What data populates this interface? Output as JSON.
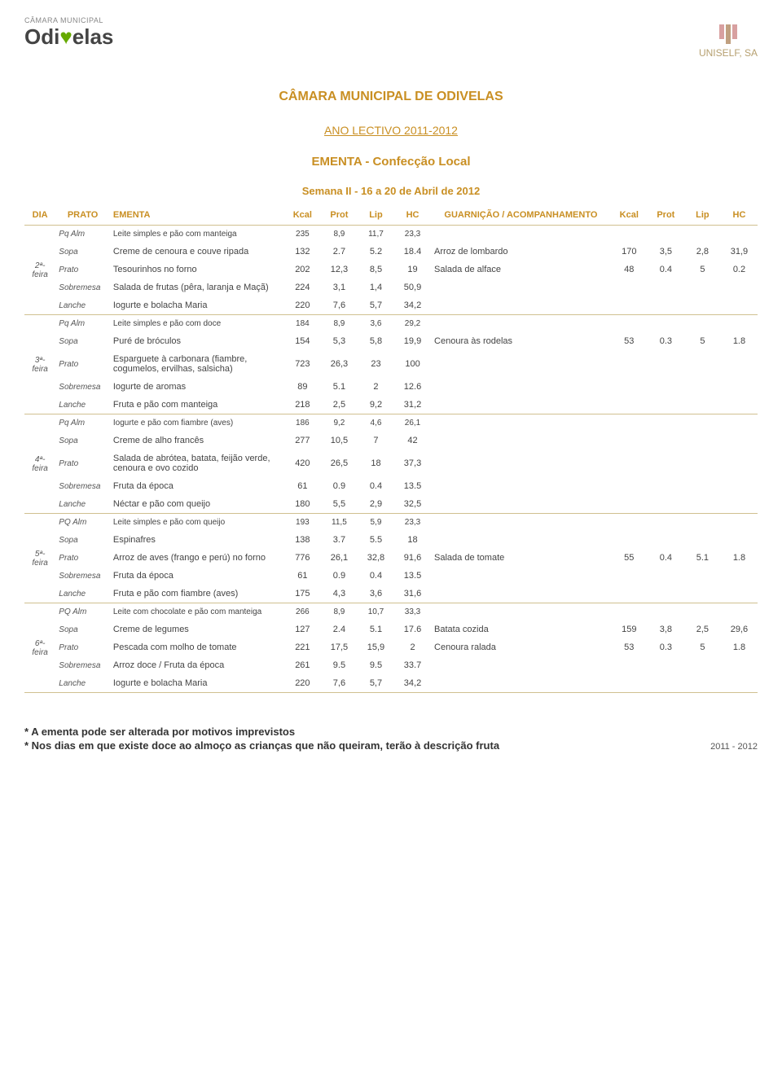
{
  "header": {
    "left_logo_small": "CÂMARA MUNICIPAL",
    "left_logo_brand_pre": "Odi",
    "left_logo_brand_mid": "♥",
    "left_logo_brand_post": "elas",
    "right_logo": "UNISELF, SA"
  },
  "titles": {
    "t1": "CÂMARA MUNICIPAL DE ODIVELAS",
    "t2": "ANO LECTIVO 2011-2012",
    "t3": "EMENTA - Confecção Local",
    "t4": "Semana II - 16 a 20 de Abril de 2012"
  },
  "columns": [
    "DIA",
    "PRATO",
    "EMENTA",
    "Kcal",
    "Prot",
    "Lip",
    "HC",
    "GUARNIÇÃO / ACOMPANHAMENTO",
    "Kcal",
    "Prot",
    "Lip",
    "HC"
  ],
  "days": [
    {
      "label": "2ª-feira",
      "rows": [
        {
          "tipo": "Pq Alm",
          "desc": "Leite simples e pão com manteiga",
          "v": [
            "235",
            "8,9",
            "11,7",
            "23,3"
          ],
          "g": "",
          "gv": [
            "",
            "",
            "",
            ""
          ],
          "small": true
        },
        {
          "tipo": "Sopa",
          "desc": "Creme de cenoura e couve ripada",
          "v": [
            "132",
            "2.7",
            "5.2",
            "18.4"
          ],
          "g": "Arroz de lombardo",
          "gv": [
            "170",
            "3,5",
            "2,8",
            "31,9"
          ]
        },
        {
          "tipo": "Prato",
          "desc": "Tesourinhos no forno",
          "v": [
            "202",
            "12,3",
            "8,5",
            "19"
          ],
          "g": "Salada de alface",
          "gv": [
            "48",
            "0.4",
            "5",
            "0.2"
          ]
        },
        {
          "tipo": "Sobremesa",
          "desc": "Salada de frutas (pêra, laranja e Maçã)",
          "v": [
            "224",
            "3,1",
            "1,4",
            "50,9"
          ],
          "g": "",
          "gv": [
            "",
            "",
            "",
            ""
          ]
        },
        {
          "tipo": "Lanche",
          "desc": "Iogurte e bolacha Maria",
          "v": [
            "220",
            "7,6",
            "5,7",
            "34,2"
          ],
          "g": "",
          "gv": [
            "",
            "",
            "",
            ""
          ]
        }
      ]
    },
    {
      "label": "3ª-feira",
      "rows": [
        {
          "tipo": "Pq Alm",
          "desc": "Leite simples e pão com doce",
          "v": [
            "184",
            "8,9",
            "3,6",
            "29,2"
          ],
          "g": "",
          "gv": [
            "",
            "",
            "",
            ""
          ],
          "small": true
        },
        {
          "tipo": "Sopa",
          "desc": "Puré de bróculos",
          "v": [
            "154",
            "5,3",
            "5,8",
            "19,9"
          ],
          "g": "Cenoura às rodelas",
          "gv": [
            "53",
            "0.3",
            "5",
            "1.8"
          ]
        },
        {
          "tipo": "Prato",
          "desc": "Esparguete à carbonara (fiambre, cogumelos, ervilhas, salsicha)",
          "v": [
            "723",
            "26,3",
            "23",
            "100"
          ],
          "g": "",
          "gv": [
            "",
            "",
            "",
            ""
          ]
        },
        {
          "tipo": "Sobremesa",
          "desc": "Iogurte de aromas",
          "v": [
            "89",
            "5.1",
            "2",
            "12.6"
          ],
          "g": "",
          "gv": [
            "",
            "",
            "",
            ""
          ]
        },
        {
          "tipo": "Lanche",
          "desc": "Fruta e pão com manteiga",
          "v": [
            "218",
            "2,5",
            "9,2",
            "31,2"
          ],
          "g": "",
          "gv": [
            "",
            "",
            "",
            ""
          ]
        }
      ]
    },
    {
      "label": "4ª-feira",
      "rows": [
        {
          "tipo": "Pq Alm",
          "desc": "Iogurte e pão com fiambre (aves)",
          "v": [
            "186",
            "9,2",
            "4,6",
            "26,1"
          ],
          "g": "",
          "gv": [
            "",
            "",
            "",
            ""
          ],
          "small": true
        },
        {
          "tipo": "Sopa",
          "desc": "Creme de alho francês",
          "v": [
            "277",
            "10,5",
            "7",
            "42"
          ],
          "g": "",
          "gv": [
            "",
            "",
            "",
            ""
          ]
        },
        {
          "tipo": "Prato",
          "desc": "Salada de abrótea, batata, feijão verde, cenoura e ovo cozido",
          "v": [
            "420",
            "26,5",
            "18",
            "37,3"
          ],
          "g": "",
          "gv": [
            "",
            "",
            "",
            ""
          ]
        },
        {
          "tipo": "Sobremesa",
          "desc": "Fruta da época",
          "v": [
            "61",
            "0.9",
            "0.4",
            "13.5"
          ],
          "g": "",
          "gv": [
            "",
            "",
            "",
            ""
          ]
        },
        {
          "tipo": "Lanche",
          "desc": "Néctar e pão com queijo",
          "v": [
            "180",
            "5,5",
            "2,9",
            "32,5"
          ],
          "g": "",
          "gv": [
            "",
            "",
            "",
            ""
          ]
        }
      ]
    },
    {
      "label": "5ª-feira",
      "rows": [
        {
          "tipo": "PQ Alm",
          "desc": "Leite simples e pão com queijo",
          "v": [
            "193",
            "11,5",
            "5,9",
            "23,3"
          ],
          "g": "",
          "gv": [
            "",
            "",
            "",
            ""
          ],
          "small": true
        },
        {
          "tipo": "Sopa",
          "desc": "Espinafres",
          "v": [
            "138",
            "3.7",
            "5.5",
            "18"
          ],
          "g": "",
          "gv": [
            "",
            "",
            "",
            ""
          ]
        },
        {
          "tipo": "Prato",
          "desc": "Arroz de aves (frango e perú) no forno",
          "v": [
            "776",
            "26,1",
            "32,8",
            "91,6"
          ],
          "g": "Salada de tomate",
          "gv": [
            "55",
            "0.4",
            "5.1",
            "1.8"
          ]
        },
        {
          "tipo": "Sobremesa",
          "desc": "Fruta da época",
          "v": [
            "61",
            "0.9",
            "0.4",
            "13.5"
          ],
          "g": "",
          "gv": [
            "",
            "",
            "",
            ""
          ]
        },
        {
          "tipo": "Lanche",
          "desc": "Fruta e pão com fiambre (aves)",
          "v": [
            "175",
            "4,3",
            "3,6",
            "31,6"
          ],
          "g": "",
          "gv": [
            "",
            "",
            "",
            ""
          ]
        }
      ]
    },
    {
      "label": "6ª-feira",
      "rows": [
        {
          "tipo": "PQ Alm",
          "desc": "Leite com chocolate e pão com manteiga",
          "v": [
            "266",
            "8,9",
            "10,7",
            "33,3"
          ],
          "g": "",
          "gv": [
            "",
            "",
            "",
            ""
          ],
          "small": true
        },
        {
          "tipo": "Sopa",
          "desc": "Creme de legumes",
          "v": [
            "127",
            "2.4",
            "5.1",
            "17.6"
          ],
          "g": "Batata cozida",
          "gv": [
            "159",
            "3,8",
            "2,5",
            "29,6"
          ]
        },
        {
          "tipo": "Prato",
          "desc": "Pescada com molho de tomate",
          "v": [
            "221",
            "17,5",
            "15,9",
            "2"
          ],
          "g": "Cenoura ralada",
          "gv": [
            "53",
            "0.3",
            "5",
            "1.8"
          ]
        },
        {
          "tipo": "Sobremesa",
          "desc": "Arroz doce / Fruta da época",
          "v": [
            "261",
            "9.5",
            "9.5",
            "33.7"
          ],
          "g": "",
          "gv": [
            "",
            "",
            "",
            ""
          ]
        },
        {
          "tipo": "Lanche",
          "desc": "Iogurte e bolacha Maria",
          "v": [
            "220",
            "7,6",
            "5,7",
            "34,2"
          ],
          "g": "",
          "gv": [
            "",
            "",
            "",
            ""
          ]
        }
      ]
    }
  ],
  "footnotes": {
    "l1": "* A ementa pode ser alterada por motivos imprevistos",
    "l2": "* Nos dias em que existe doce ao almoço as crianças que não queiram, terão à descrição fruta",
    "year": "2011 - 2012"
  },
  "style": {
    "accent": "#c98f23",
    "border": "#d0c090",
    "text": "#444"
  }
}
